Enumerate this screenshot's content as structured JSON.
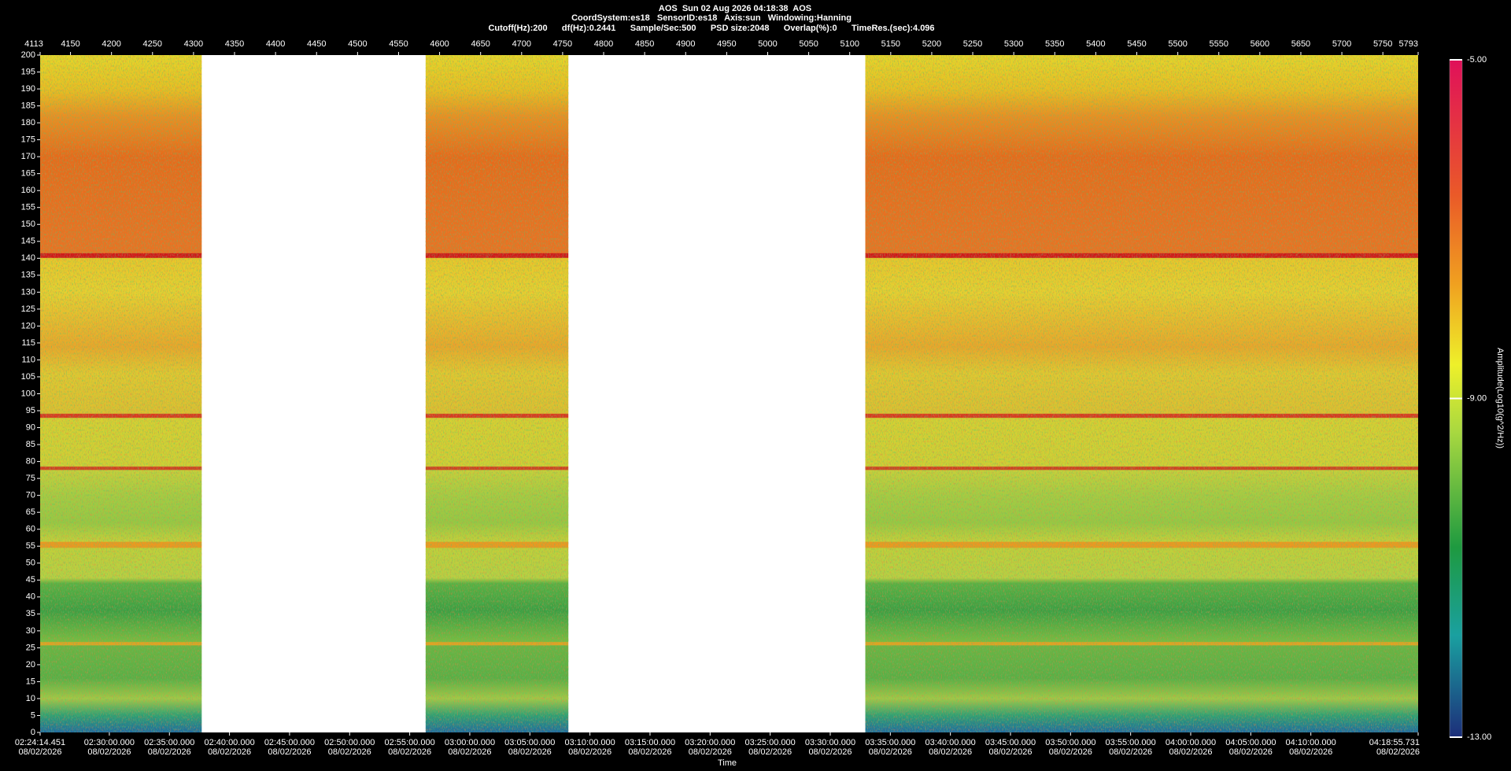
{
  "chart_data": {
    "type": "spectrogram",
    "title_lines": [
      "AOS  Sun 02 Aug 2026 04:18:38  AOS",
      "CoordSystem:es18   SensorID:es18   Axis:sun   Windowing:Hanning",
      "Cutoff(Hz):200      df(Hz):0.2441      Sample/Sec:500      PSD size:2048      Overlap(%):0      TimeRes.(sec):4.096"
    ],
    "xlim": [
      4113,
      5793
    ],
    "xticks": [
      4113,
      4150,
      4200,
      4250,
      4300,
      4350,
      4400,
      4450,
      4500,
      4550,
      4600,
      4650,
      4700,
      4750,
      4800,
      4850,
      4900,
      4950,
      5000,
      5050,
      5100,
      5150,
      5200,
      5250,
      5300,
      5350,
      5400,
      5450,
      5500,
      5550,
      5600,
      5650,
      5700,
      5750,
      5793
    ],
    "ylim": [
      0,
      200
    ],
    "yticks": [
      0,
      5,
      10,
      15,
      20,
      25,
      30,
      35,
      40,
      45,
      50,
      55,
      60,
      65,
      70,
      75,
      80,
      85,
      90,
      95,
      100,
      105,
      110,
      115,
      120,
      125,
      130,
      135,
      140,
      145,
      150,
      155,
      160,
      165,
      170,
      175,
      180,
      185,
      190,
      195,
      200
    ],
    "data_spans": [
      [
        4113,
        4310
      ],
      [
        4583,
        4757
      ],
      [
        5119,
        5793
      ]
    ],
    "x_label": "Time",
    "time_labels": [
      {
        "time": "02:24:14.451",
        "date": "08/02/2026"
      },
      {
        "time": "02:30:00.000",
        "date": "08/02/2026"
      },
      {
        "time": "02:35:00.000",
        "date": "08/02/2026"
      },
      {
        "time": "02:40:00.000",
        "date": "08/02/2026"
      },
      {
        "time": "02:45:00.000",
        "date": "08/02/2026"
      },
      {
        "time": "02:50:00.000",
        "date": "08/02/2026"
      },
      {
        "time": "02:55:00.000",
        "date": "08/02/2026"
      },
      {
        "time": "03:00:00.000",
        "date": "08/02/2026"
      },
      {
        "time": "03:05:00.000",
        "date": "08/02/2026"
      },
      {
        "time": "03:10:00.000",
        "date": "08/02/2026"
      },
      {
        "time": "03:15:00.000",
        "date": "08/02/2026"
      },
      {
        "time": "03:20:00.000",
        "date": "08/02/2026"
      },
      {
        "time": "03:25:00.000",
        "date": "08/02/2026"
      },
      {
        "time": "03:30:00.000",
        "date": "08/02/2026"
      },
      {
        "time": "03:35:00.000",
        "date": "08/02/2026"
      },
      {
        "time": "03:40:00.000",
        "date": "08/02/2026"
      },
      {
        "time": "03:45:00.000",
        "date": "08/02/2026"
      },
      {
        "time": "03:50:00.000",
        "date": "08/02/2026"
      },
      {
        "time": "03:55:00.000",
        "date": "08/02/2026"
      },
      {
        "time": "04:00:00.000",
        "date": "08/02/2026"
      },
      {
        "time": "04:05:00.000",
        "date": "08/02/2026"
      },
      {
        "time": "04:10:00.000",
        "date": "08/02/2026"
      },
      {
        "time": "04:18:55.731",
        "date": "08/02/2026"
      }
    ],
    "colorbar": {
      "label": "Amplitude(Log10(g^2/Hz))",
      "clim": [
        -13,
        -5
      ],
      "ticks": [
        {
          "value": -5,
          "label": "-5.00"
        },
        {
          "value": -9,
          "label": "-9.00"
        },
        {
          "value": -13,
          "label": "-13.00"
        }
      ]
    }
  }
}
